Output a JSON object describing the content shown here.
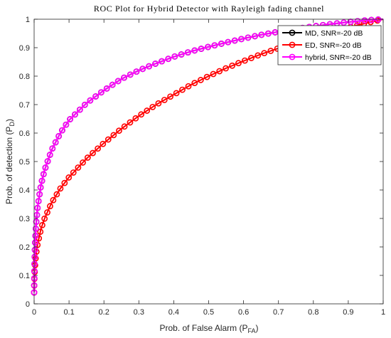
{
  "chart_data": {
    "type": "line",
    "title": "ROC Plot for Hybrid Detector with Rayleigh fading channel",
    "xlabel": {
      "main": "Prob. of False Alarm (P",
      "sub": "FA",
      "close": ")"
    },
    "ylabel": {
      "main": "Prob. of detection (P",
      "sub": "D",
      "close": ")"
    },
    "xlim": [
      0,
      1
    ],
    "ylim": [
      0,
      1
    ],
    "xticks": [
      "0",
      "0.1",
      "0.2",
      "0.3",
      "0.4",
      "0.5",
      "0.6",
      "0.7",
      "0.8",
      "0.9",
      "1"
    ],
    "yticks": [
      "0",
      "0.1",
      "0.2",
      "0.3",
      "0.4",
      "0.5",
      "0.6",
      "0.7",
      "0.8",
      "0.9",
      "1"
    ],
    "grid": false,
    "legend": "top-right",
    "series": [
      {
        "name": "MD, SNR=-20 dB",
        "color": "#000000",
        "x": [
          0,
          0.001,
          0.003,
          0.005,
          0.01,
          0.02,
          0.03,
          0.05,
          0.075,
          0.1,
          0.15,
          0.2,
          0.25,
          0.3,
          0.35,
          0.4,
          0.45,
          0.5,
          0.55,
          0.6,
          0.65,
          0.7,
          0.75,
          0.8,
          0.85,
          0.9,
          0.95,
          1
        ],
        "y": [
          0.04,
          0.14,
          0.22,
          0.27,
          0.34,
          0.42,
          0.47,
          0.54,
          0.6,
          0.645,
          0.705,
          0.75,
          0.79,
          0.82,
          0.845,
          0.868,
          0.887,
          0.903,
          0.918,
          0.932,
          0.945,
          0.956,
          0.966,
          0.975,
          0.983,
          0.99,
          0.996,
          1
        ]
      },
      {
        "name": "ED, SNR=-20 dB",
        "color": "#ff0000",
        "x": [
          0,
          0.001,
          0.003,
          0.005,
          0.01,
          0.02,
          0.03,
          0.05,
          0.075,
          0.1,
          0.15,
          0.2,
          0.25,
          0.3,
          0.35,
          0.4,
          0.45,
          0.5,
          0.55,
          0.6,
          0.65,
          0.7,
          0.75,
          0.8,
          0.85,
          0.9,
          0.95,
          1
        ],
        "y": [
          0.04,
          0.1,
          0.14,
          0.17,
          0.21,
          0.265,
          0.3,
          0.355,
          0.405,
          0.445,
          0.51,
          0.565,
          0.615,
          0.66,
          0.7,
          0.735,
          0.77,
          0.8,
          0.828,
          0.853,
          0.877,
          0.898,
          0.918,
          0.937,
          0.955,
          0.971,
          0.986,
          1
        ]
      },
      {
        "name": "hybrid, SNR=-20 dB",
        "color": "#ff00ff",
        "x": [
          0,
          0.001,
          0.003,
          0.005,
          0.01,
          0.02,
          0.03,
          0.05,
          0.075,
          0.1,
          0.15,
          0.2,
          0.25,
          0.3,
          0.35,
          0.4,
          0.45,
          0.5,
          0.55,
          0.6,
          0.65,
          0.7,
          0.75,
          0.8,
          0.85,
          0.9,
          0.95,
          1
        ],
        "y": [
          0.04,
          0.14,
          0.22,
          0.27,
          0.34,
          0.42,
          0.47,
          0.54,
          0.6,
          0.645,
          0.705,
          0.75,
          0.79,
          0.82,
          0.845,
          0.868,
          0.887,
          0.903,
          0.918,
          0.932,
          0.945,
          0.956,
          0.966,
          0.975,
          0.983,
          0.99,
          0.996,
          1
        ]
      }
    ]
  }
}
